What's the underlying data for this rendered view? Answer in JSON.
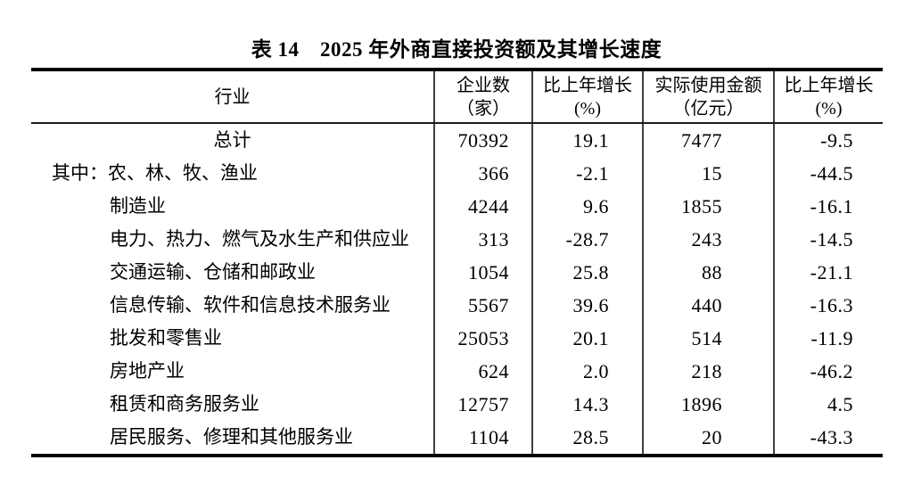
{
  "table": {
    "title": "表 14　2025 年外商直接投资额及其增长速度",
    "columns": [
      {
        "line1": "行业",
        "line2": ""
      },
      {
        "line1": "企业数",
        "line2": "（家）"
      },
      {
        "line1": "比上年增长",
        "line2": "(%)"
      },
      {
        "line1": "实际使用金额",
        "line2": "（亿元）"
      },
      {
        "line1": "比上年增长",
        "line2": "(%)"
      }
    ],
    "rows": [
      {
        "prefix": "",
        "industry": "总计",
        "enterprises": "70392",
        "enterprises_growth": "19.1",
        "amount": "7477",
        "amount_growth": "-9.5"
      },
      {
        "prefix": "其中：",
        "industry": "农、林、牧、渔业",
        "enterprises": "366",
        "enterprises_growth": "-2.1",
        "amount": "15",
        "amount_growth": "-44.5"
      },
      {
        "prefix": "",
        "industry": "制造业",
        "enterprises": "4244",
        "enterprises_growth": "9.6",
        "amount": "1855",
        "amount_growth": "-16.1"
      },
      {
        "prefix": "",
        "industry": "电力、热力、燃气及水生产和供应业",
        "enterprises": "313",
        "enterprises_growth": "-28.7",
        "amount": "243",
        "amount_growth": "-14.5"
      },
      {
        "prefix": "",
        "industry": "交通运输、仓储和邮政业",
        "enterprises": "1054",
        "enterprises_growth": "25.8",
        "amount": "88",
        "amount_growth": "-21.1"
      },
      {
        "prefix": "",
        "industry": "信息传输、软件和信息技术服务业",
        "enterprises": "5567",
        "enterprises_growth": "39.6",
        "amount": "440",
        "amount_growth": "-16.3"
      },
      {
        "prefix": "",
        "industry": "批发和零售业",
        "enterprises": "25053",
        "enterprises_growth": "20.1",
        "amount": "514",
        "amount_growth": "-11.9"
      },
      {
        "prefix": "",
        "industry": "房地产业",
        "enterprises": "624",
        "enterprises_growth": "2.0",
        "amount": "218",
        "amount_growth": "-46.2"
      },
      {
        "prefix": "",
        "industry": "租赁和商务服务业",
        "enterprises": "12757",
        "enterprises_growth": "14.3",
        "amount": "1896",
        "amount_growth": "4.5"
      },
      {
        "prefix": "",
        "industry": "居民服务、修理和其他服务业",
        "enterprises": "1104",
        "enterprises_growth": "28.5",
        "amount": "20",
        "amount_growth": "-43.3"
      }
    ]
  }
}
